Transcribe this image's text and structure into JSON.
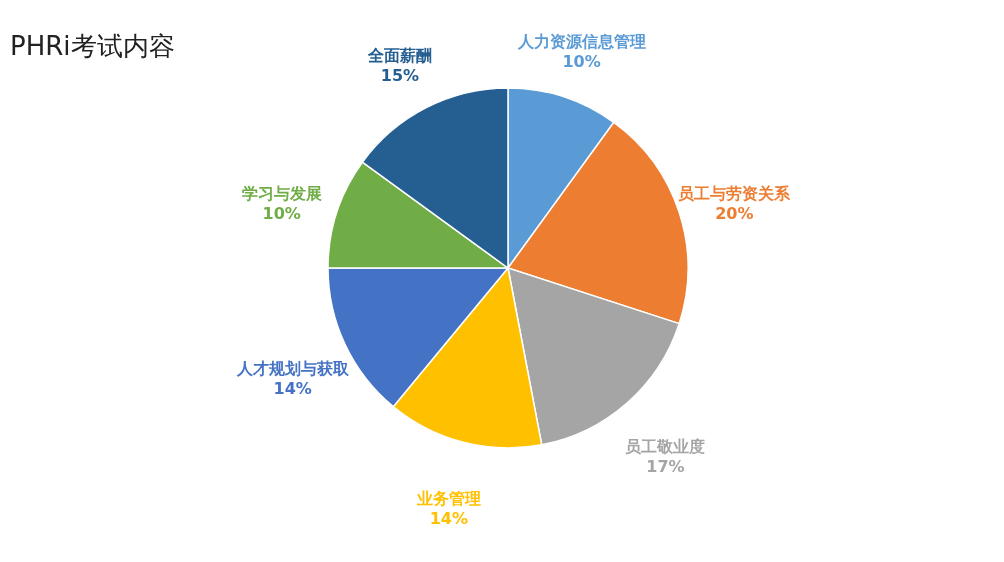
{
  "chart_data": {
    "type": "pie",
    "title": "PHRi考试内容",
    "categories": [
      "人力资源信息管理",
      "员工与劳资关系",
      "员工敬业度",
      "业务管理",
      "人才规划与获取",
      "学习与发展",
      "全面薪酬"
    ],
    "values": [
      10,
      20,
      17,
      14,
      14,
      10,
      15
    ],
    "colors": [
      "#5b9bd5",
      "#ed7d31",
      "#a5a5a5",
      "#ffc000",
      "#4472c4",
      "#70ad47",
      "#255e91"
    ],
    "value_labels": [
      "10%",
      "20%",
      "17%",
      "14%",
      "14%",
      "10%",
      "15%"
    ],
    "legend": false
  }
}
